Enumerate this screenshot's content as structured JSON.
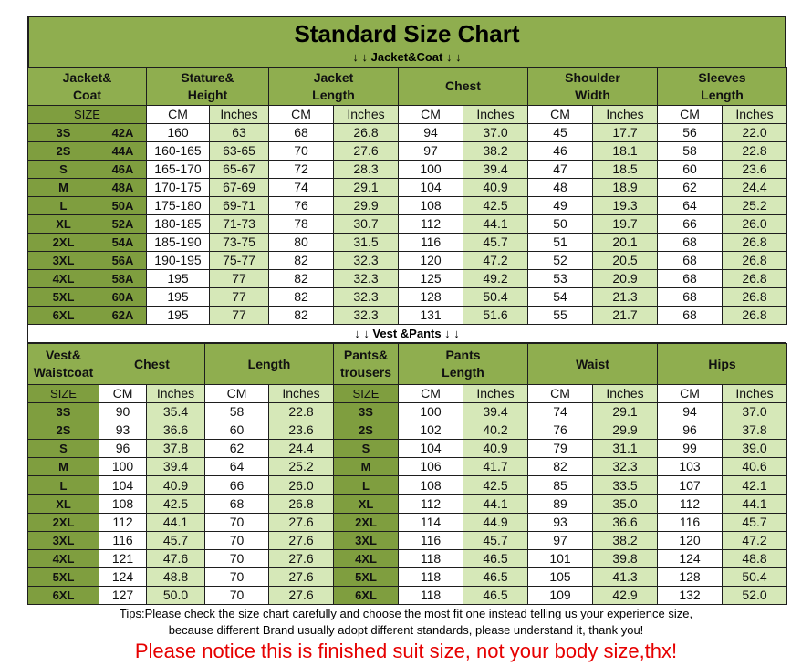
{
  "title": "Standard Size Chart",
  "jacket": {
    "banner": "↓ ↓ Jacket&Coat ↓ ↓",
    "headers": [
      [
        "Jacket&",
        "Coat"
      ],
      [
        "Stature&",
        "Height"
      ],
      [
        "Jacket",
        "Length"
      ],
      [
        "Chest"
      ],
      [
        "Shoulder",
        "Width"
      ],
      [
        "Sleeves",
        "Length"
      ]
    ],
    "units": [
      "SIZE",
      "CM",
      "Inches",
      "CM",
      "Inches",
      "CM",
      "Inches",
      "CM",
      "Inches",
      "CM",
      "Inches"
    ],
    "rows": [
      [
        "3S",
        "42A",
        "160",
        "63",
        "68",
        "26.8",
        "94",
        "37.0",
        "45",
        "17.7",
        "56",
        "22.0"
      ],
      [
        "2S",
        "44A",
        "160-165",
        "63-65",
        "70",
        "27.6",
        "97",
        "38.2",
        "46",
        "18.1",
        "58",
        "22.8"
      ],
      [
        "S",
        "46A",
        "165-170",
        "65-67",
        "72",
        "28.3",
        "100",
        "39.4",
        "47",
        "18.5",
        "60",
        "23.6"
      ],
      [
        "M",
        "48A",
        "170-175",
        "67-69",
        "74",
        "29.1",
        "104",
        "40.9",
        "48",
        "18.9",
        "62",
        "24.4"
      ],
      [
        "L",
        "50A",
        "175-180",
        "69-71",
        "76",
        "29.9",
        "108",
        "42.5",
        "49",
        "19.3",
        "64",
        "25.2"
      ],
      [
        "XL",
        "52A",
        "180-185",
        "71-73",
        "78",
        "30.7",
        "112",
        "44.1",
        "50",
        "19.7",
        "66",
        "26.0"
      ],
      [
        "2XL",
        "54A",
        "185-190",
        "73-75",
        "80",
        "31.5",
        "116",
        "45.7",
        "51",
        "20.1",
        "68",
        "26.8"
      ],
      [
        "3XL",
        "56A",
        "190-195",
        "75-77",
        "82",
        "32.3",
        "120",
        "47.2",
        "52",
        "20.5",
        "68",
        "26.8"
      ],
      [
        "4XL",
        "58A",
        "195",
        "77",
        "82",
        "32.3",
        "125",
        "49.2",
        "53",
        "20.9",
        "68",
        "26.8"
      ],
      [
        "5XL",
        "60A",
        "195",
        "77",
        "82",
        "32.3",
        "128",
        "50.4",
        "54",
        "21.3",
        "68",
        "26.8"
      ],
      [
        "6XL",
        "62A",
        "195",
        "77",
        "82",
        "32.3",
        "131",
        "51.6",
        "55",
        "21.7",
        "68",
        "26.8"
      ]
    ]
  },
  "vest": {
    "banner": "↓ ↓ Vest &Pants ↓ ↓",
    "headers": [
      [
        "Vest&",
        "Waistcoat"
      ],
      [
        "Chest"
      ],
      [
        "Length"
      ],
      [
        "Pants&",
        "trousers"
      ],
      [
        "Pants",
        "Length"
      ],
      [
        "Waist"
      ],
      [
        "Hips"
      ]
    ],
    "units": [
      "SIZE",
      "CM",
      "Inches",
      "CM",
      "Inches",
      "SIZE",
      "CM",
      "Inches",
      "CM",
      "Inches",
      "CM",
      "Inches"
    ],
    "rows": [
      [
        "3S",
        "90",
        "35.4",
        "58",
        "22.8",
        "3S",
        "100",
        "39.4",
        "74",
        "29.1",
        "94",
        "37.0"
      ],
      [
        "2S",
        "93",
        "36.6",
        "60",
        "23.6",
        "2S",
        "102",
        "40.2",
        "76",
        "29.9",
        "96",
        "37.8"
      ],
      [
        "S",
        "96",
        "37.8",
        "62",
        "24.4",
        "S",
        "104",
        "40.9",
        "79",
        "31.1",
        "99",
        "39.0"
      ],
      [
        "M",
        "100",
        "39.4",
        "64",
        "25.2",
        "M",
        "106",
        "41.7",
        "82",
        "32.3",
        "103",
        "40.6"
      ],
      [
        "L",
        "104",
        "40.9",
        "66",
        "26.0",
        "L",
        "108",
        "42.5",
        "85",
        "33.5",
        "107",
        "42.1"
      ],
      [
        "XL",
        "108",
        "42.5",
        "68",
        "26.8",
        "XL",
        "112",
        "44.1",
        "89",
        "35.0",
        "112",
        "44.1"
      ],
      [
        "2XL",
        "112",
        "44.1",
        "70",
        "27.6",
        "2XL",
        "114",
        "44.9",
        "93",
        "36.6",
        "116",
        "45.7"
      ],
      [
        "3XL",
        "116",
        "45.7",
        "70",
        "27.6",
        "3XL",
        "116",
        "45.7",
        "97",
        "38.2",
        "120",
        "47.2"
      ],
      [
        "4XL",
        "121",
        "47.6",
        "70",
        "27.6",
        "4XL",
        "118",
        "46.5",
        "101",
        "39.8",
        "124",
        "48.8"
      ],
      [
        "5XL",
        "124",
        "48.8",
        "70",
        "27.6",
        "5XL",
        "118",
        "46.5",
        "105",
        "41.3",
        "128",
        "50.4"
      ],
      [
        "6XL",
        "127",
        "50.0",
        "70",
        "27.6",
        "6XL",
        "118",
        "46.5",
        "109",
        "42.9",
        "132",
        "52.0"
      ]
    ]
  },
  "tips": [
    "Tips:Please check the size chart carefully and choose the most fit one instead telling us your experience size,",
    "because different Brand usually adopt different standards, please understand it, thank you!"
  ],
  "notice": "Please notice this is finished suit size, not your body size,thx!"
}
